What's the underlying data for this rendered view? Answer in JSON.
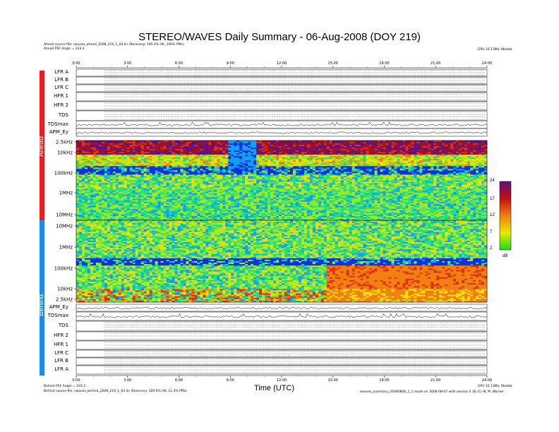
{
  "title": "STEREO/WAVES Daily Summary - 06-Aug-2008 (DOY 219)",
  "header": {
    "ahead_source": "Ahead source file: swaves_ahead_2008_219_1_04.lin (Recovery: 100.0% HK, 100% PMs)",
    "ahead_angle": "Ahead PSF Angle = 333.3",
    "behind_angle": "Behind PSF Angle = 333.3",
    "behind_source": "Behind source file: swaves_behind_2008_219_1_04.lin (Recovery: 100.0% HK, 11.3% PMs)",
    "right_top": "GPU 10 13Mz, Wadeb",
    "right_bottom": "GPU 10 13Mz, Wadeb",
    "footer_right": "swaves_summary_20080806_1_1 made on 2008-08-07 with version 0.3b (C) W. M. Warner",
    "xlabel": "Time (UTC)"
  },
  "sides": {
    "ahead": "Ahead",
    "behind": "Behind"
  },
  "colors": {
    "ahead_bar": "#ee1c1c",
    "behind_bar": "#1a8ce8"
  },
  "colorbar": {
    "ticks": [
      "24",
      "17",
      "12",
      "7",
      "2"
    ],
    "unit": "dB"
  },
  "chart_data": {
    "type": "heatmap",
    "title": "STEREO/WAVES Daily Summary - 06-Aug-2008 (DOY 219)",
    "xlabel": "Time (UTC)",
    "xlim": [
      0,
      24
    ],
    "x_ticks": [
      "0:00",
      "3:00",
      "6:00",
      "9:00",
      "12:00",
      "15:00",
      "18:00",
      "21:00",
      "24:00"
    ],
    "ahead_panel_labels": [
      "LFR A",
      "LFR B",
      "LFR C",
      "HFR 1",
      "HFR 2",
      "TDS",
      "TDSmax",
      "APM_Ey"
    ],
    "behind_panel_labels": [
      "APM_Ey",
      "TDSmax",
      "TDS",
      "HFR 2",
      "HFR 1",
      "LFR C",
      "LFR B",
      "LFR A"
    ],
    "ahead_freq_ticks": [
      "2.5kHz",
      "10kHz",
      "100kHz",
      "1MHz",
      "10MHz"
    ],
    "behind_freq_ticks": [
      "10MHz",
      "1MHz",
      "100kHz",
      "10kHz",
      "2.5kHz"
    ],
    "colorbar": {
      "unit": "dB",
      "min": 2,
      "max": 24,
      "ticks": [
        24,
        17,
        12,
        7,
        2
      ]
    }
  }
}
